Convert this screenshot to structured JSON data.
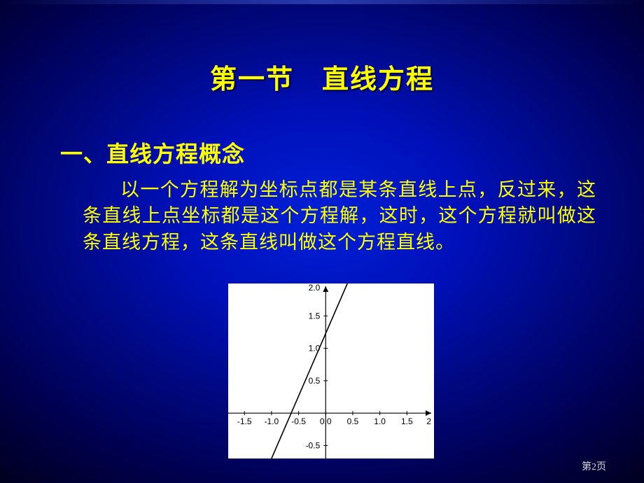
{
  "title": "第一节　直线方程",
  "heading": "一、直线方程概念",
  "paragraph": "以一个方程解为坐标点都是某条直线上点，反过来，这条直线上点坐标都是这个方程解，这时，这个方程就叫做这条直线方程，这条直线叫做这个方程直线。",
  "page_label": "第2页",
  "chart": {
    "type": "line",
    "background_color": "#ffffff",
    "axis_color": "#000000",
    "line_color": "#000000",
    "tick_label_color": "#000000",
    "tick_fontsize": 12,
    "xlim": [
      -1.8,
      2.0
    ],
    "ylim": [
      -0.7,
      2.0
    ],
    "xticks": [
      -1.5,
      -1.0,
      -0.5,
      0.0,
      0.5,
      1.0,
      1.5
    ],
    "yticks": [
      -0.5,
      0.5,
      1.0,
      1.5
    ],
    "y_top_label": "2.0",
    "x_right_label": "2",
    "line_points": [
      [
        -1.0,
        -0.7
      ],
      [
        0.4,
        2.0
      ]
    ],
    "grid": false,
    "arrow_heads": true
  },
  "colors": {
    "title_color": "#ffff00",
    "heading_color": "#ffff00",
    "body_color": "#ffff00",
    "page_num_color": "#d8d8d8",
    "bg_center": "#0020d8",
    "bg_edge": "#000020"
  }
}
